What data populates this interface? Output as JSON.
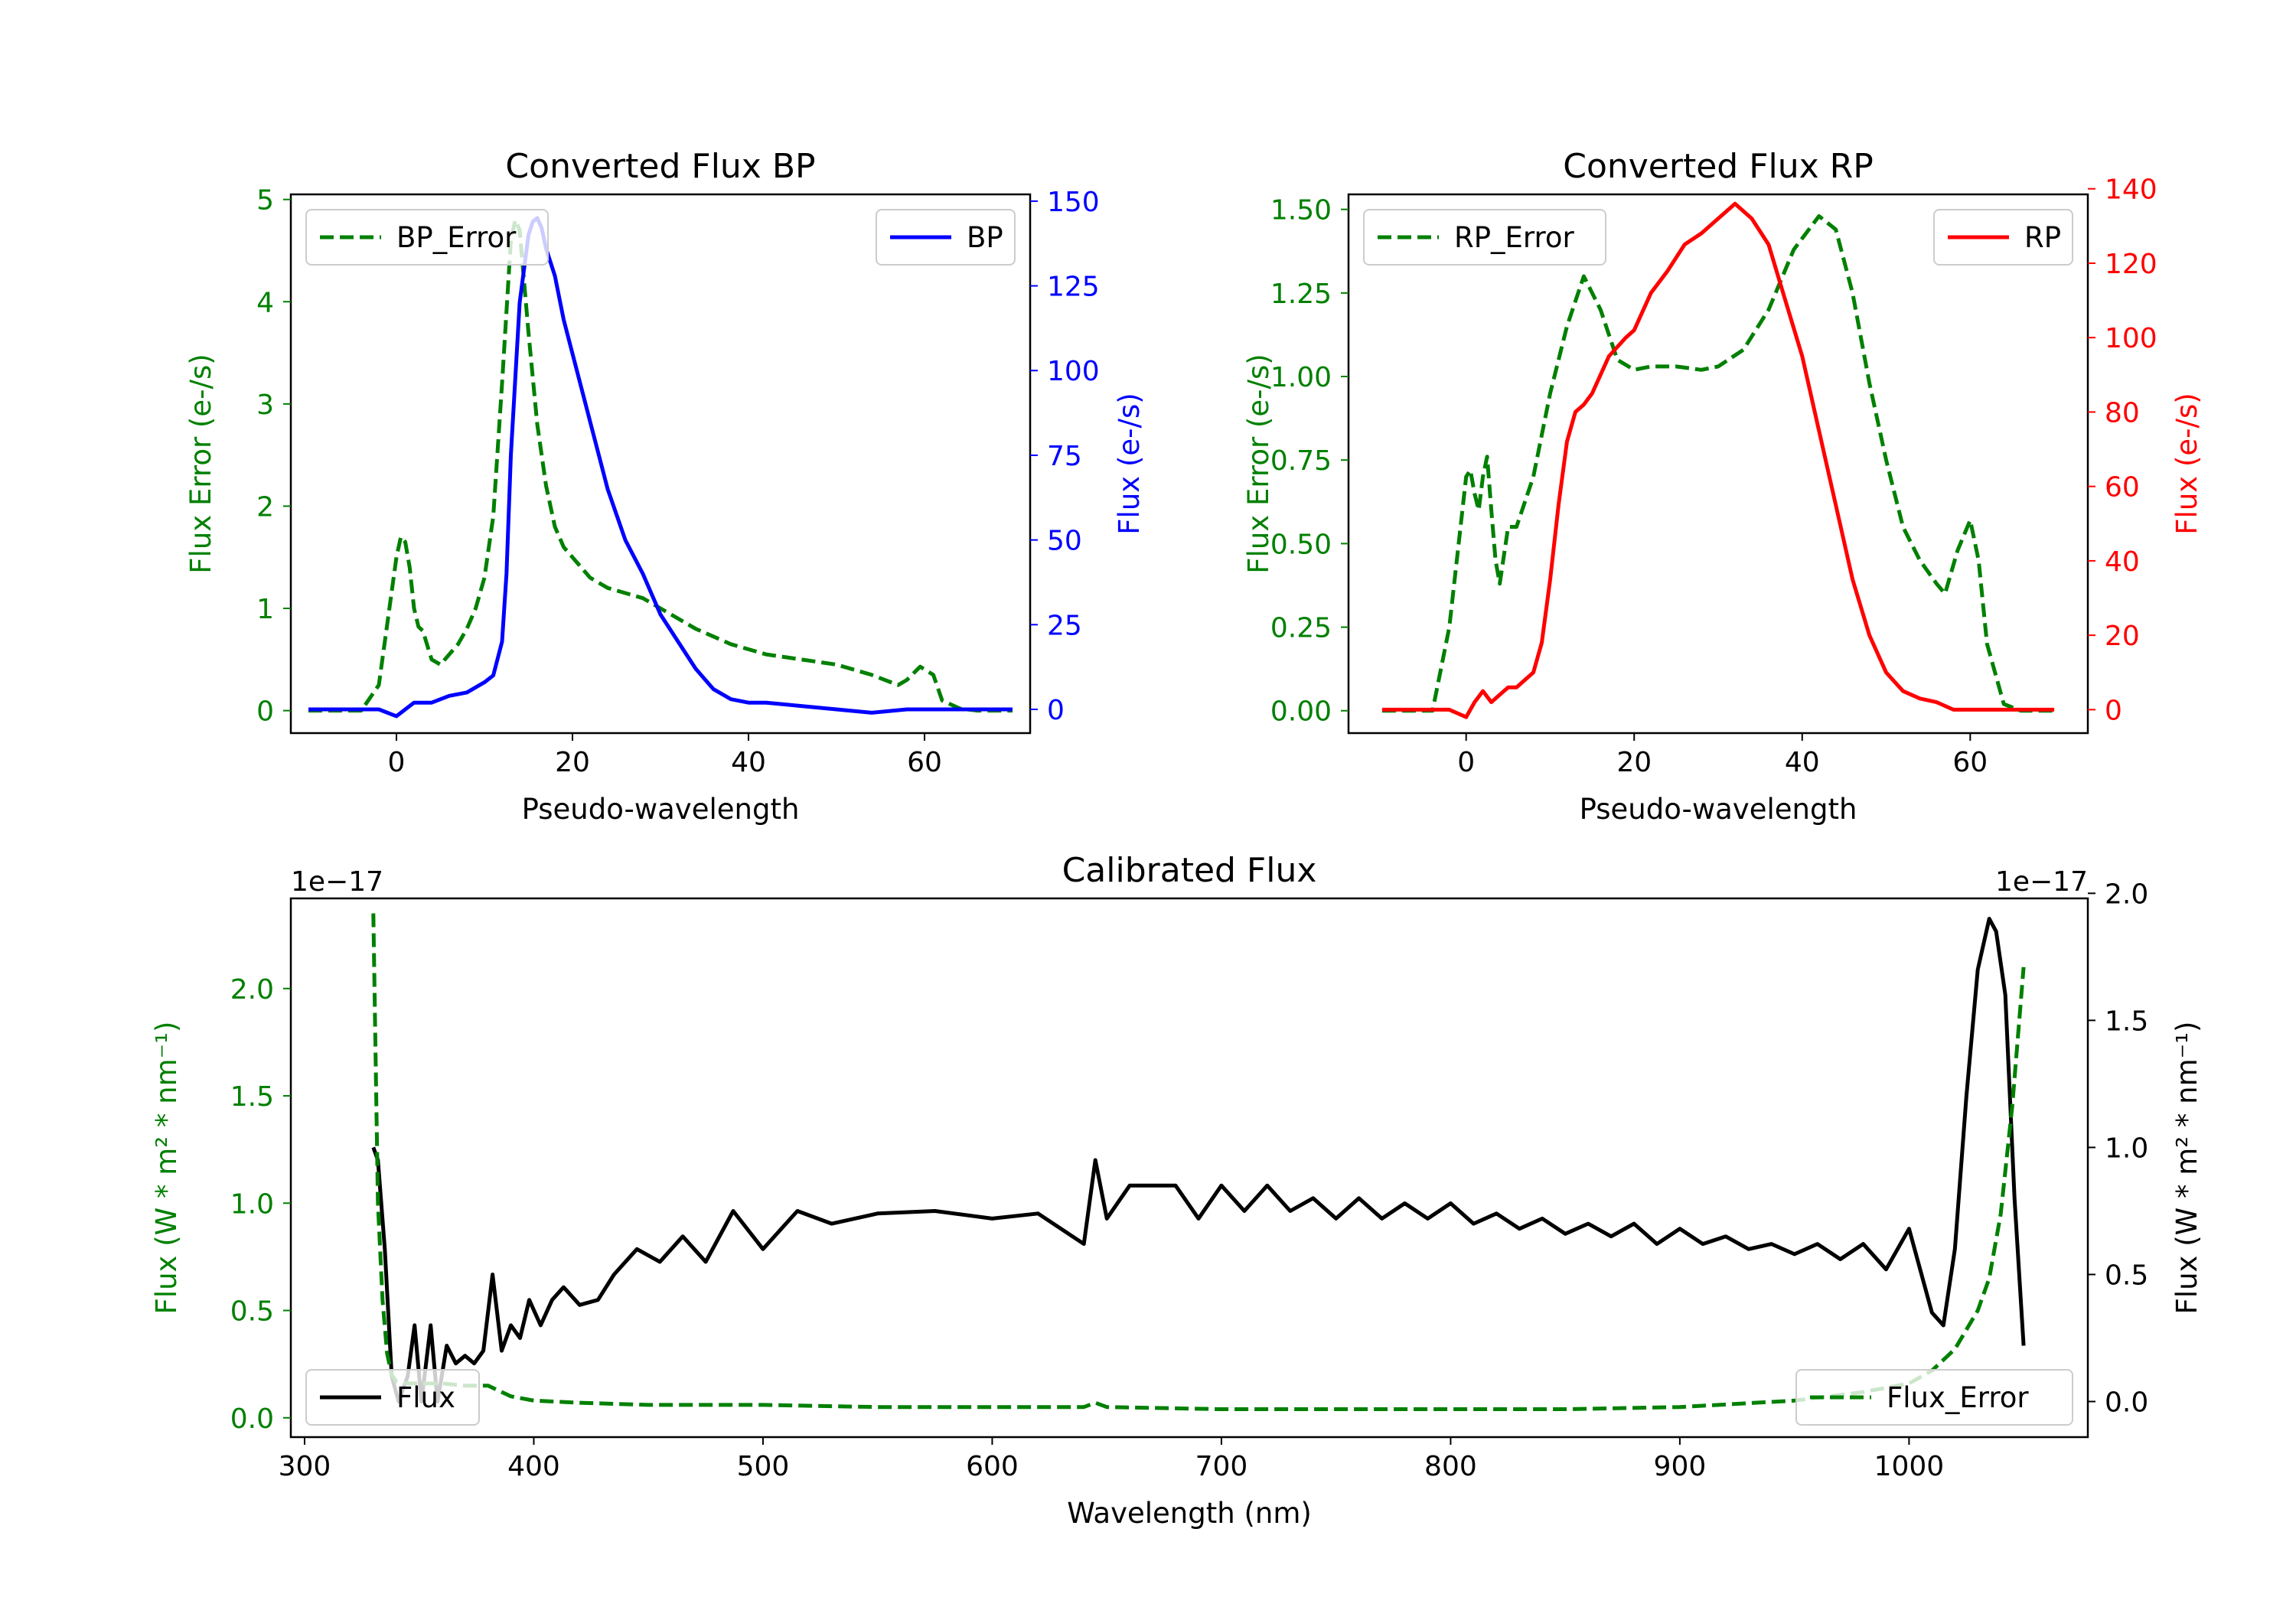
{
  "colors": {
    "bp": "#0000ff",
    "rp": "#ff0000",
    "error": "#008000",
    "flux": "#000000"
  },
  "chart_data": [
    {
      "id": "bp",
      "type": "line",
      "title": "Converted Flux BP",
      "xlabel": "Pseudo-wavelength",
      "ylabel_left": "Flux Error (e-/s)",
      "ylabel_right": "Flux (e-/s)",
      "xlim": [
        -12,
        72
      ],
      "ylim_left": [
        -0.22,
        5.05
      ],
      "ylim_right": [
        -7,
        152
      ],
      "xticks": [
        0,
        20,
        40,
        60
      ],
      "yticks_left": [
        0,
        1,
        2,
        3,
        4,
        5
      ],
      "yticks_right": [
        0,
        25,
        50,
        75,
        100,
        125,
        150
      ],
      "legend": {
        "left": "BP_Error",
        "right": "BP"
      },
      "series": [
        {
          "name": "BP_Error",
          "axis": "left",
          "style": "dashed",
          "color": "error",
          "x": [
            -10,
            -4,
            -2,
            0,
            0.5,
            1,
            1.5,
            2,
            2.5,
            3,
            4,
            5,
            6,
            7,
            8,
            9,
            10,
            11,
            12,
            13,
            13.5,
            14,
            15,
            16,
            17,
            18,
            19,
            20,
            22,
            24,
            26,
            28,
            30,
            34,
            38,
            42,
            46,
            50,
            54,
            57,
            58,
            59.5,
            61,
            62,
            64,
            66,
            70
          ],
          "y": [
            0,
            0,
            0.25,
            1.5,
            1.7,
            1.65,
            1.4,
            1.0,
            0.82,
            0.78,
            0.5,
            0.45,
            0.55,
            0.65,
            0.8,
            1.0,
            1.3,
            1.9,
            3.2,
            4.6,
            4.8,
            4.7,
            3.7,
            2.8,
            2.2,
            1.8,
            1.6,
            1.5,
            1.3,
            1.2,
            1.15,
            1.1,
            1.0,
            0.8,
            0.65,
            0.55,
            0.5,
            0.45,
            0.35,
            0.25,
            0.3,
            0.43,
            0.35,
            0.1,
            0.02,
            0,
            0
          ]
        },
        {
          "name": "BP",
          "axis": "right",
          "style": "solid",
          "color": "bp",
          "x": [
            -10,
            -2,
            0,
            2,
            4,
            6,
            8,
            10,
            11,
            12,
            12.5,
            13,
            14,
            15,
            15.5,
            16,
            16.5,
            17,
            18,
            19,
            20,
            22,
            24,
            26,
            28,
            30,
            32,
            34,
            36,
            38,
            40,
            42,
            46,
            50,
            54,
            58,
            62,
            66,
            70
          ],
          "y": [
            0,
            0,
            -2,
            2,
            2,
            4,
            5,
            8,
            10,
            20,
            40,
            75,
            120,
            140,
            144,
            145,
            142,
            136,
            128,
            115,
            105,
            85,
            65,
            50,
            40,
            28,
            20,
            12,
            6,
            3,
            2,
            2,
            1,
            0,
            -1,
            0,
            0,
            0,
            0
          ]
        }
      ]
    },
    {
      "id": "rp",
      "type": "line",
      "title": "Converted Flux RP",
      "xlabel": "Pseudo-wavelength",
      "ylabel_left": "Flux Error (e-/s)",
      "ylabel_right": "Flux (e-/s)",
      "xlim": [
        -14,
        74
      ],
      "ylim_left": [
        -0.067,
        1.545
      ],
      "ylim_right": [
        -6.3,
        138.5
      ],
      "xticks": [
        0,
        20,
        40,
        60
      ],
      "yticks_left": [
        "0.00",
        "0.25",
        "0.50",
        "0.75",
        "1.00",
        "1.25",
        "1.50"
      ],
      "yticks_right": [
        0,
        20,
        40,
        60,
        80,
        100,
        120,
        140
      ],
      "legend": {
        "left": "RP_Error",
        "right": "RP"
      },
      "series": [
        {
          "name": "RP_Error",
          "axis": "left",
          "style": "dashed",
          "color": "error",
          "x": [
            -10,
            -4,
            -2,
            0,
            0.5,
            1,
            1.5,
            2,
            2.5,
            3,
            3.5,
            4,
            5,
            6,
            8,
            10,
            12,
            14,
            16,
            18,
            20,
            22,
            25,
            28,
            30,
            33,
            36,
            39,
            42,
            44,
            46,
            48,
            50,
            52,
            54,
            56,
            57,
            58.5,
            60,
            61,
            62,
            64,
            66,
            70
          ],
          "y": [
            0,
            0,
            0.25,
            0.7,
            0.72,
            0.65,
            0.6,
            0.7,
            0.76,
            0.6,
            0.45,
            0.38,
            0.55,
            0.55,
            0.7,
            0.95,
            1.15,
            1.3,
            1.2,
            1.05,
            1.02,
            1.03,
            1.03,
            1.02,
            1.03,
            1.08,
            1.2,
            1.38,
            1.48,
            1.44,
            1.25,
            0.98,
            0.75,
            0.55,
            0.45,
            0.38,
            0.35,
            0.48,
            0.57,
            0.45,
            0.2,
            0.02,
            0,
            0
          ]
        },
        {
          "name": "RP",
          "axis": "right",
          "style": "solid",
          "color": "rp",
          "x": [
            -10,
            -4,
            -2,
            0,
            1,
            2,
            3,
            4,
            5,
            6,
            8,
            9,
            10,
            11,
            12,
            13,
            14,
            15,
            17,
            19,
            20,
            22,
            24,
            26,
            28,
            30,
            32,
            33,
            34,
            36,
            38,
            40,
            42,
            44,
            46,
            48,
            50,
            52,
            54,
            56,
            58,
            60,
            62,
            64,
            66,
            70
          ],
          "y": [
            0,
            0,
            0,
            -2,
            2,
            5,
            2,
            4,
            6,
            6,
            10,
            18,
            35,
            55,
            72,
            80,
            82,
            85,
            95,
            100,
            102,
            112,
            118,
            125,
            128,
            132,
            136,
            134,
            132,
            125,
            110,
            95,
            75,
            55,
            35,
            20,
            10,
            5,
            3,
            2,
            0,
            0,
            0,
            0,
            0,
            0
          ]
        }
      ]
    },
    {
      "id": "cal",
      "type": "line",
      "title": "Calibrated Flux",
      "xlabel": "Wavelength (nm)",
      "ylabel_left": "Flux (W * m² * nm⁻¹)",
      "ylabel_right": "Flux (W * m² * nm⁻¹)",
      "offset_left": "1e−17",
      "offset_right": "1e−17",
      "xlim": [
        294,
        1078
      ],
      "ylim_left": [
        -0.09,
        2.42
      ],
      "ylim_right": [
        -0.14,
        1.98
      ],
      "xticks": [
        300,
        400,
        500,
        600,
        700,
        800,
        900,
        1000
      ],
      "yticks_left": [
        "0.0",
        "0.5",
        "1.0",
        "1.5",
        "2.0"
      ],
      "yticks_right": [
        "0.0",
        "0.5",
        "1.0",
        "1.5",
        "2.0"
      ],
      "legend": {
        "left": "Flux",
        "right": "Flux_Error"
      },
      "series": [
        {
          "name": "Flux",
          "axis": "right",
          "style": "solid",
          "color": "flux",
          "x": [
            330,
            332,
            335,
            338,
            341,
            345,
            348,
            351,
            355,
            358,
            362,
            366,
            370,
            374,
            378,
            382,
            386,
            390,
            394,
            398,
            403,
            408,
            413,
            420,
            428,
            435,
            445,
            455,
            465,
            475,
            487,
            500,
            515,
            530,
            550,
            575,
            600,
            620,
            640,
            645,
            650,
            660,
            670,
            680,
            690,
            700,
            710,
            720,
            730,
            740,
            750,
            760,
            770,
            780,
            790,
            800,
            810,
            820,
            830,
            840,
            850,
            860,
            870,
            880,
            890,
            900,
            910,
            920,
            930,
            940,
            950,
            960,
            970,
            980,
            990,
            1000,
            1010,
            1015,
            1020,
            1025,
            1030,
            1035,
            1038,
            1042,
            1046,
            1050
          ],
          "y": [
            1.0,
            0.95,
            0.6,
            0.1,
            0.0,
            0.1,
            0.3,
            0.0,
            0.3,
            0.0,
            0.22,
            0.15,
            0.18,
            0.15,
            0.2,
            0.5,
            0.2,
            0.3,
            0.25,
            0.4,
            0.3,
            0.4,
            0.45,
            0.38,
            0.4,
            0.5,
            0.6,
            0.55,
            0.65,
            0.55,
            0.75,
            0.6,
            0.75,
            0.7,
            0.74,
            0.75,
            0.72,
            0.74,
            0.62,
            0.95,
            0.72,
            0.85,
            0.85,
            0.85,
            0.72,
            0.85,
            0.75,
            0.85,
            0.75,
            0.8,
            0.72,
            0.8,
            0.72,
            0.78,
            0.72,
            0.78,
            0.7,
            0.74,
            0.68,
            0.72,
            0.66,
            0.7,
            0.65,
            0.7,
            0.62,
            0.68,
            0.62,
            0.65,
            0.6,
            0.62,
            0.58,
            0.62,
            0.56,
            0.62,
            0.52,
            0.68,
            0.35,
            0.3,
            0.6,
            1.2,
            1.7,
            1.9,
            1.85,
            1.6,
            0.8,
            0.22
          ]
        },
        {
          "name": "Flux_Error",
          "axis": "left",
          "style": "dashed",
          "color": "error",
          "x": [
            330,
            332,
            334,
            336,
            338,
            340,
            345,
            350,
            360,
            370,
            380,
            390,
            400,
            420,
            450,
            500,
            550,
            600,
            640,
            645,
            650,
            700,
            750,
            800,
            850,
            900,
            950,
            980,
            1000,
            1010,
            1020,
            1030,
            1035,
            1040,
            1045,
            1050
          ],
          "y": [
            2.35,
            1.0,
            0.55,
            0.3,
            0.2,
            0.17,
            0.16,
            0.16,
            0.16,
            0.15,
            0.15,
            0.1,
            0.08,
            0.07,
            0.06,
            0.06,
            0.05,
            0.05,
            0.05,
            0.07,
            0.05,
            0.04,
            0.04,
            0.04,
            0.04,
            0.05,
            0.08,
            0.12,
            0.16,
            0.22,
            0.32,
            0.5,
            0.65,
            0.95,
            1.45,
            2.1
          ]
        }
      ]
    }
  ]
}
